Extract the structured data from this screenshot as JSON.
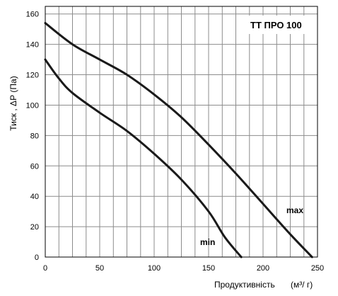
{
  "chart_data": {
    "type": "line",
    "title": "TT ПРО 100",
    "xlabel": "Продуктивність",
    "xlabel_unit": "(м³/ г)",
    "ylabel": "Тиск , ΔР (Па)",
    "xlim": [
      0,
      250
    ],
    "ylim": [
      0,
      165
    ],
    "x_ticks": [
      0,
      50,
      100,
      150,
      200,
      250
    ],
    "y_ticks": [
      0,
      20,
      40,
      60,
      80,
      100,
      120,
      140,
      160
    ],
    "x_minor_step": 12.5,
    "grid": true,
    "title_box": "top-right",
    "series": [
      {
        "name": "max",
        "color": "#1a1a1a",
        "x": [
          0,
          25,
          50,
          75,
          100,
          125,
          150,
          175,
          200,
          225,
          245
        ],
        "y": [
          154,
          140,
          130,
          120,
          107,
          92,
          74,
          55,
          35,
          15,
          0
        ]
      },
      {
        "name": "min",
        "color": "#1a1a1a",
        "x": [
          0,
          12,
          25,
          50,
          75,
          100,
          125,
          150,
          165,
          180
        ],
        "y": [
          130,
          118,
          108,
          95,
          83,
          68,
          51,
          30,
          13,
          0
        ]
      }
    ]
  }
}
